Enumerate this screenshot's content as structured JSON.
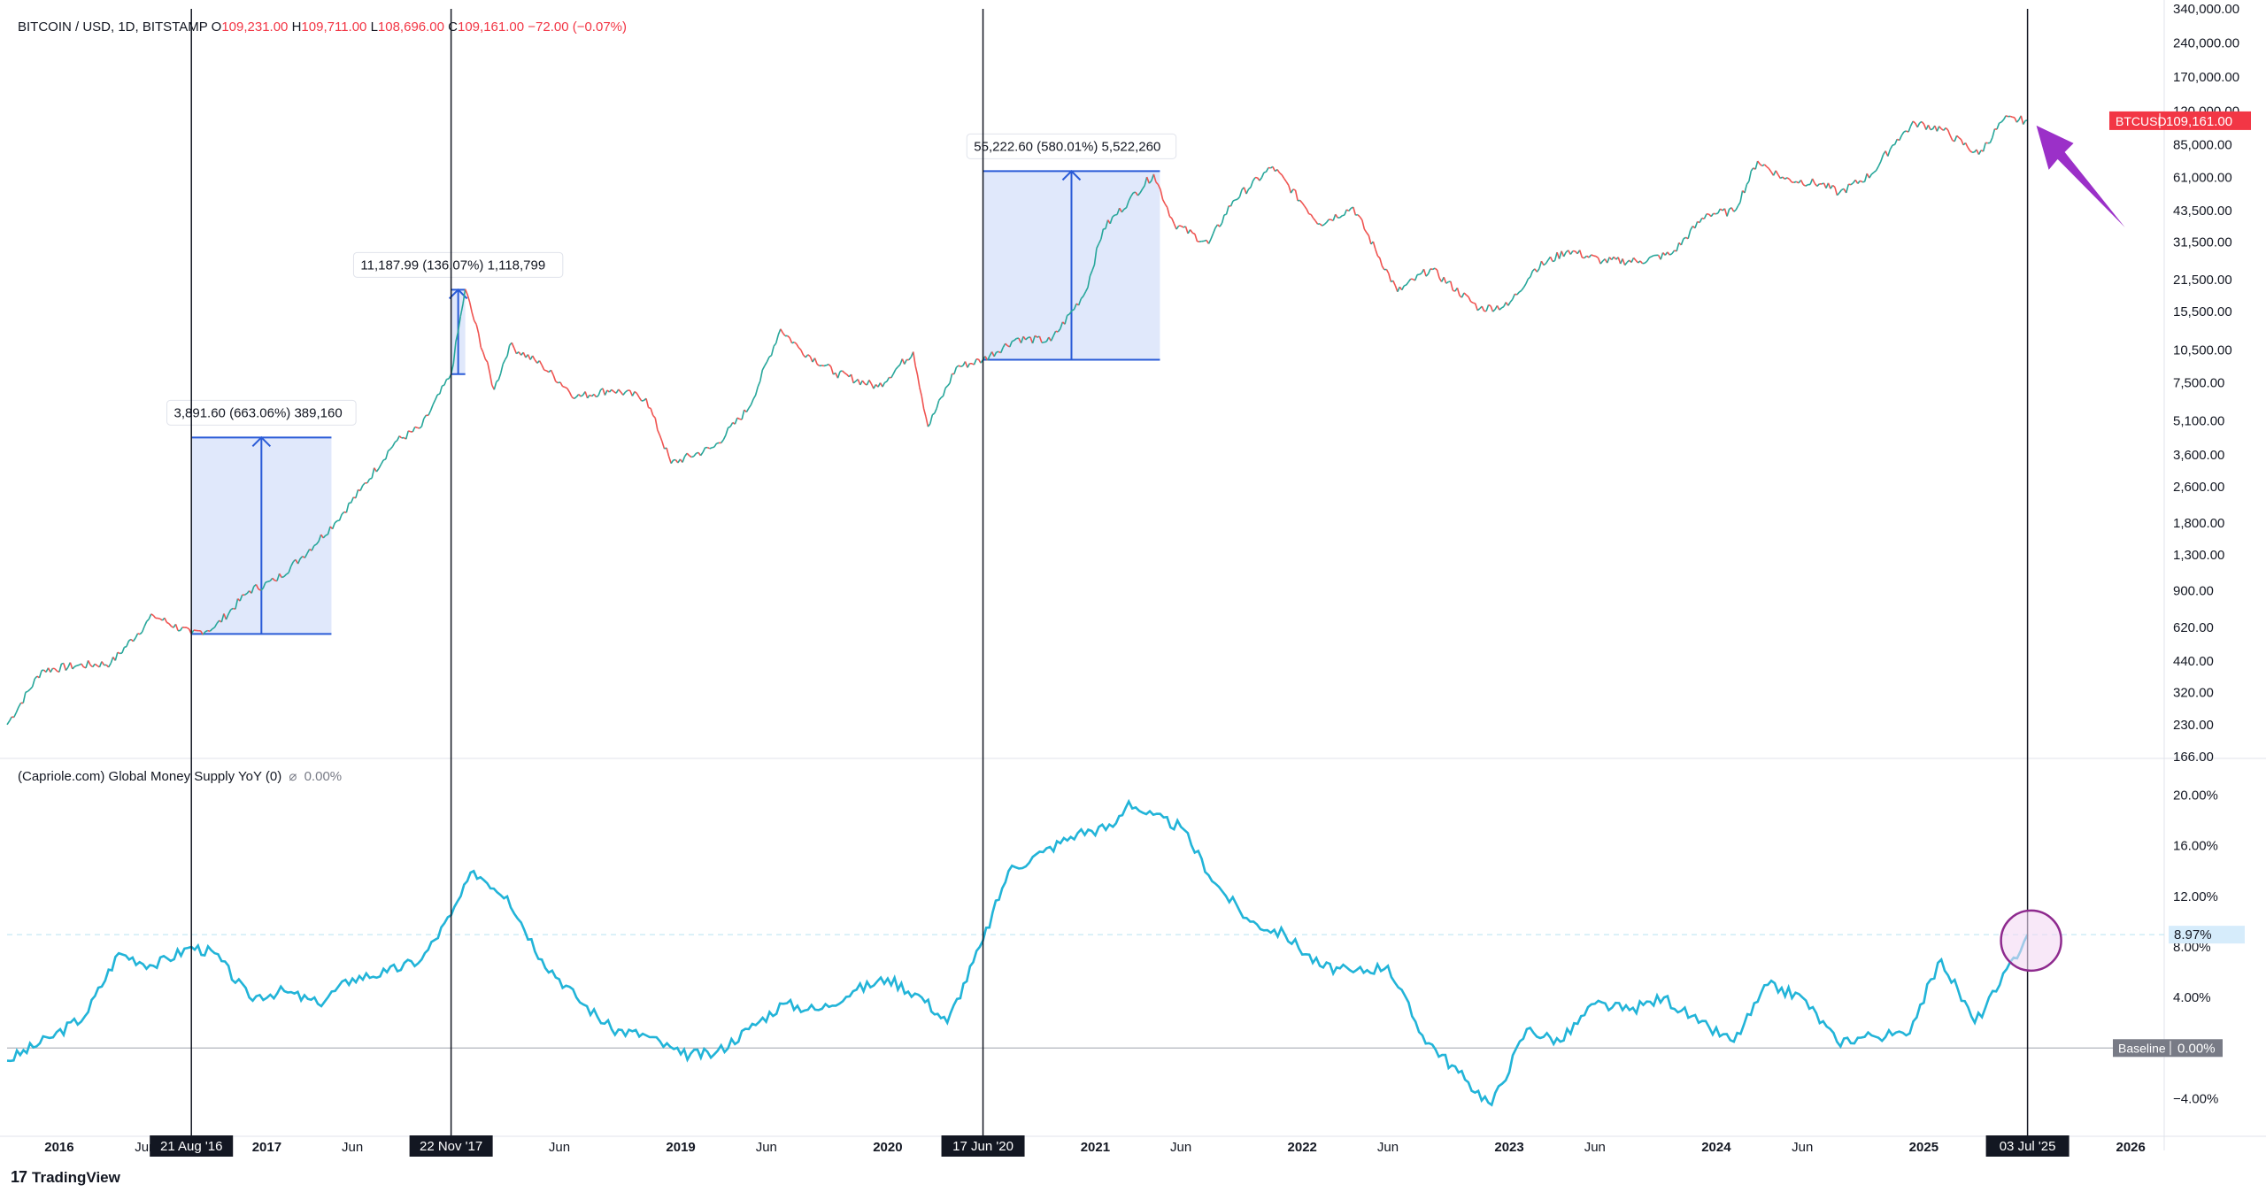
{
  "header": {
    "symbol": "BITCOIN / USD, 1D, BITSTAMP",
    "o_label": "O",
    "o_val": "109,231.00",
    "h_label": "H",
    "h_val": "109,711.00",
    "l_label": "L",
    "l_val": "108,696.00",
    "c_label": "C",
    "c_val": "109,161.00",
    "change": "−72.00 (−0.07%)"
  },
  "indicator": {
    "title": "(Capriole.com) Global Money Supply YoY (0)",
    "icon": "crossed-circle-icon",
    "value": "0.00%",
    "last_label": "8.97%",
    "baseline_label": "Baseline",
    "baseline_value": "0.00%"
  },
  "price_tag": {
    "symbol": "BTCUSD",
    "value": "109,161.00"
  },
  "price_axis": [
    "340,000.00",
    "240,000.00",
    "170,000.00",
    "120,000.00",
    "85,000.00",
    "61,000.00",
    "43,500.00",
    "31,500.00",
    "21,500.00",
    "15,500.00",
    "10,500.00",
    "7,500.00",
    "5,100.00",
    "3,600.00",
    "2,600.00",
    "1,800.00",
    "1,300.00",
    "900.00",
    "620.00",
    "440.00",
    "320.00",
    "230.00",
    "166.00"
  ],
  "indicator_axis": [
    "20.00%",
    "16.00%",
    "12.00%",
    "8.00%",
    "4.00%",
    "−4.00%"
  ],
  "time_axis": [
    {
      "label": "2016",
      "bold": true
    },
    {
      "label": "Jun",
      "bold": false
    },
    {
      "label": "2017",
      "bold": true
    },
    {
      "label": "Jun",
      "bold": false
    },
    {
      "label": "Jun",
      "bold": false
    },
    {
      "label": "2019",
      "bold": true
    },
    {
      "label": "Jun",
      "bold": false
    },
    {
      "label": "2020",
      "bold": true
    },
    {
      "label": "2021",
      "bold": true
    },
    {
      "label": "Jun",
      "bold": false
    },
    {
      "label": "2022",
      "bold": true
    },
    {
      "label": "Jun",
      "bold": false
    },
    {
      "label": "2023",
      "bold": true
    },
    {
      "label": "Jun",
      "bold": false
    },
    {
      "label": "2024",
      "bold": true
    },
    {
      "label": "Jun",
      "bold": false
    },
    {
      "label": "2025",
      "bold": true
    },
    {
      "label": "2026",
      "bold": true
    }
  ],
  "date_markers": [
    "21 Aug '16",
    "22 Nov '17",
    "17 Jun '20",
    "03 Jul '25"
  ],
  "measures": [
    {
      "label": "3,891.60 (663.06%) 389,160"
    },
    {
      "label": "11,187.99 (136.07%) 1,118,799"
    },
    {
      "label": "55,222.60 (580.01%) 5,522,260"
    }
  ],
  "branding": {
    "logo_text": "TradingView",
    "icon": "tradingview-logo-icon"
  },
  "colors": {
    "up": "#26a69a",
    "down": "#ef5350",
    "indicator_line": "#22b4d8",
    "measure_fill": "#dde6fb",
    "measure_line": "#2a5bd7",
    "arrow": "#9b30c8",
    "circle": "#8e2a8e",
    "price_tag": "#f23645"
  },
  "chart_data": [
    {
      "type": "line",
      "title": "BITCOIN / USD, 1D, BITSTAMP",
      "scale": "log",
      "ylim": [
        166,
        340000
      ],
      "xlim": [
        "2015-10-01",
        "2026-03-01"
      ],
      "x": [
        "2015-10-01",
        "2015-12-01",
        "2016-02-01",
        "2016-04-01",
        "2016-06-15",
        "2016-08-21",
        "2016-10-01",
        "2016-12-01",
        "2017-01-15",
        "2017-03-01",
        "2017-05-01",
        "2017-06-15",
        "2017-08-15",
        "2017-10-01",
        "2017-11-22",
        "2017-12-17",
        "2018-02-06",
        "2018-03-05",
        "2018-05-01",
        "2018-07-01",
        "2018-09-01",
        "2018-11-01",
        "2018-12-15",
        "2019-03-01",
        "2019-05-01",
        "2019-06-26",
        "2019-08-01",
        "2019-10-01",
        "2019-12-15",
        "2020-02-15",
        "2020-03-12",
        "2020-05-01",
        "2020-06-17",
        "2020-08-15",
        "2020-10-15",
        "2020-12-15",
        "2021-01-15",
        "2021-03-01",
        "2021-04-14",
        "2021-05-20",
        "2021-07-20",
        "2021-09-01",
        "2021-11-10",
        "2022-01-01",
        "2022-02-01",
        "2022-04-01",
        "2022-06-18",
        "2022-08-15",
        "2022-11-10",
        "2022-12-30",
        "2023-02-15",
        "2023-04-15",
        "2023-06-15",
        "2023-08-20",
        "2023-10-15",
        "2023-12-15",
        "2024-02-01",
        "2024-03-14",
        "2024-05-01",
        "2024-07-05",
        "2024-08-05",
        "2024-10-01",
        "2024-11-15",
        "2024-12-17",
        "2025-02-01",
        "2025-04-08",
        "2025-05-22",
        "2025-07-03"
      ],
      "series": [
        {
          "values": [
            230,
            400,
            420,
            430,
            700,
            580,
            620,
            900,
            1000,
            1250,
            1800,
            2500,
            4100,
            4800,
            8200,
            19500,
            7000,
            11000,
            9000,
            6500,
            7000,
            6400,
            3300,
            3900,
            5800,
            13000,
            10500,
            8300,
            7200,
            10300,
            4800,
            8800,
            9500,
            11800,
            11500,
            19000,
            36000,
            48000,
            63000,
            38000,
            31000,
            48000,
            68000,
            47000,
            38000,
            45000,
            19000,
            24000,
            16000,
            16500,
            24000,
            29000,
            26000,
            26000,
            28000,
            42000,
            43000,
            72000,
            60000,
            57000,
            52000,
            63000,
            90000,
            106000,
            100000,
            77000,
            110000,
            109161
          ]
        }
      ]
    },
    {
      "type": "line",
      "title": "(Capriole.com) Global Money Supply YoY (0)",
      "ylim": [
        -6,
        22
      ],
      "xlim": [
        "2015-10-01",
        "2026-03-01"
      ],
      "x": [
        "2015-10-01",
        "2015-12-15",
        "2016-02-15",
        "2016-04-15",
        "2016-06-15",
        "2016-08-21",
        "2016-10-01",
        "2016-12-01",
        "2017-02-01",
        "2017-04-01",
        "2017-06-01",
        "2017-08-01",
        "2017-10-01",
        "2017-11-22",
        "2018-01-01",
        "2018-03-01",
        "2018-05-01",
        "2018-07-01",
        "2018-09-01",
        "2018-11-01",
        "2019-01-01",
        "2019-03-01",
        "2019-05-01",
        "2019-07-01",
        "2019-09-01",
        "2019-11-01",
        "2020-01-01",
        "2020-03-01",
        "2020-04-15",
        "2020-06-17",
        "2020-08-01",
        "2020-10-01",
        "2020-12-01",
        "2021-02-01",
        "2021-03-01",
        "2021-04-01",
        "2021-06-01",
        "2021-08-01",
        "2021-10-01",
        "2021-12-01",
        "2022-02-01",
        "2022-04-01",
        "2022-06-01",
        "2022-08-01",
        "2022-10-15",
        "2022-12-01",
        "2023-02-01",
        "2023-04-01",
        "2023-06-01",
        "2023-08-01",
        "2023-10-01",
        "2023-12-01",
        "2024-02-01",
        "2024-04-01",
        "2024-06-01",
        "2024-08-01",
        "2024-10-01",
        "2024-12-01",
        "2025-02-01",
        "2025-04-01",
        "2025-05-15",
        "2025-07-03"
      ],
      "series": [
        {
          "values": [
            -1.0,
            0.8,
            2.5,
            7.5,
            6.5,
            8.0,
            7.5,
            4.0,
            4.5,
            3.5,
            5.5,
            6.0,
            7.0,
            10.5,
            14.0,
            12.0,
            7.0,
            4.0,
            1.5,
            1.0,
            -0.5,
            -0.5,
            1.5,
            3.5,
            3.0,
            4.5,
            5.5,
            4.0,
            2.0,
            8.5,
            14.0,
            15.5,
            17.0,
            17.5,
            19.5,
            18.5,
            17.5,
            13.0,
            10.0,
            9.0,
            6.5,
            6.0,
            6.5,
            1.0,
            -2.5,
            -4.5,
            1.5,
            0.5,
            3.5,
            3.0,
            4.0,
            2.0,
            0.5,
            5.0,
            4.0,
            0.5,
            1.0,
            1.0,
            7.0,
            2.0,
            5.0,
            8.97
          ]
        }
      ]
    }
  ]
}
